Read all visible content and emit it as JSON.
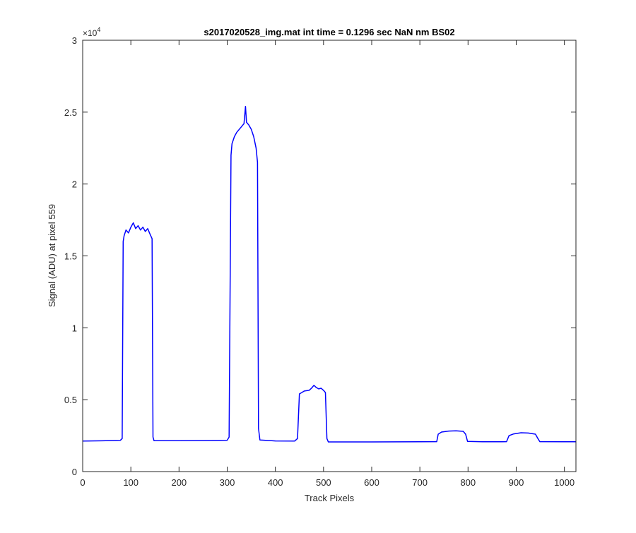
{
  "chart_data": {
    "type": "line",
    "title": "s2017020528_img.mat int time = 0.1296 sec  NaN nm BS02",
    "xlabel": "Track Pixels",
    "ylabel": "Signal (ADU) at pixel 559",
    "xlim": [
      0,
      1024
    ],
    "ylim": [
      0,
      30000
    ],
    "x_ticks": [
      0,
      100,
      200,
      300,
      400,
      500,
      600,
      700,
      800,
      900,
      1000
    ],
    "x_tick_labels": [
      "0",
      "100",
      "200",
      "300",
      "400",
      "500",
      "600",
      "700",
      "800",
      "900",
      "1000"
    ],
    "y_ticks": [
      0,
      5000,
      10000,
      15000,
      20000,
      25000,
      30000
    ],
    "y_tick_labels": [
      "0",
      "0.5",
      "1",
      "1.5",
      "2",
      "2.5",
      "3"
    ],
    "y_exponent_label": "×10",
    "y_exponent_power": "4",
    "grid": false,
    "series": [
      {
        "color": "#0000ff",
        "points": [
          [
            0,
            2120
          ],
          [
            40,
            2140
          ],
          [
            78,
            2170
          ],
          [
            82,
            2300
          ],
          [
            84,
            16000
          ],
          [
            86,
            16400
          ],
          [
            90,
            16800
          ],
          [
            95,
            16600
          ],
          [
            100,
            17000
          ],
          [
            105,
            17300
          ],
          [
            110,
            16900
          ],
          [
            115,
            17100
          ],
          [
            120,
            16800
          ],
          [
            125,
            17000
          ],
          [
            130,
            16700
          ],
          [
            135,
            16900
          ],
          [
            140,
            16500
          ],
          [
            144,
            16200
          ],
          [
            146,
            2400
          ],
          [
            148,
            2150
          ],
          [
            200,
            2150
          ],
          [
            250,
            2160
          ],
          [
            300,
            2180
          ],
          [
            304,
            2400
          ],
          [
            308,
            22000
          ],
          [
            310,
            22800
          ],
          [
            315,
            23300
          ],
          [
            320,
            23600
          ],
          [
            325,
            23800
          ],
          [
            330,
            24000
          ],
          [
            335,
            24200
          ],
          [
            338,
            25400
          ],
          [
            340,
            24300
          ],
          [
            345,
            24100
          ],
          [
            350,
            23800
          ],
          [
            355,
            23300
          ],
          [
            360,
            22500
          ],
          [
            363,
            21500
          ],
          [
            365,
            3000
          ],
          [
            368,
            2200
          ],
          [
            400,
            2130
          ],
          [
            440,
            2120
          ],
          [
            446,
            2300
          ],
          [
            450,
            5400
          ],
          [
            455,
            5500
          ],
          [
            460,
            5600
          ],
          [
            470,
            5650
          ],
          [
            475,
            5800
          ],
          [
            480,
            6000
          ],
          [
            485,
            5850
          ],
          [
            490,
            5750
          ],
          [
            495,
            5800
          ],
          [
            500,
            5650
          ],
          [
            504,
            5500
          ],
          [
            507,
            2300
          ],
          [
            510,
            2060
          ],
          [
            600,
            2060
          ],
          [
            700,
            2070
          ],
          [
            735,
            2080
          ],
          [
            738,
            2600
          ],
          [
            745,
            2750
          ],
          [
            760,
            2820
          ],
          [
            775,
            2840
          ],
          [
            790,
            2800
          ],
          [
            795,
            2600
          ],
          [
            799,
            2100
          ],
          [
            830,
            2070
          ],
          [
            870,
            2070
          ],
          [
            880,
            2080
          ],
          [
            885,
            2500
          ],
          [
            895,
            2620
          ],
          [
            910,
            2700
          ],
          [
            925,
            2680
          ],
          [
            940,
            2600
          ],
          [
            945,
            2300
          ],
          [
            949,
            2080
          ],
          [
            1000,
            2070
          ],
          [
            1024,
            2070
          ]
        ]
      }
    ]
  }
}
